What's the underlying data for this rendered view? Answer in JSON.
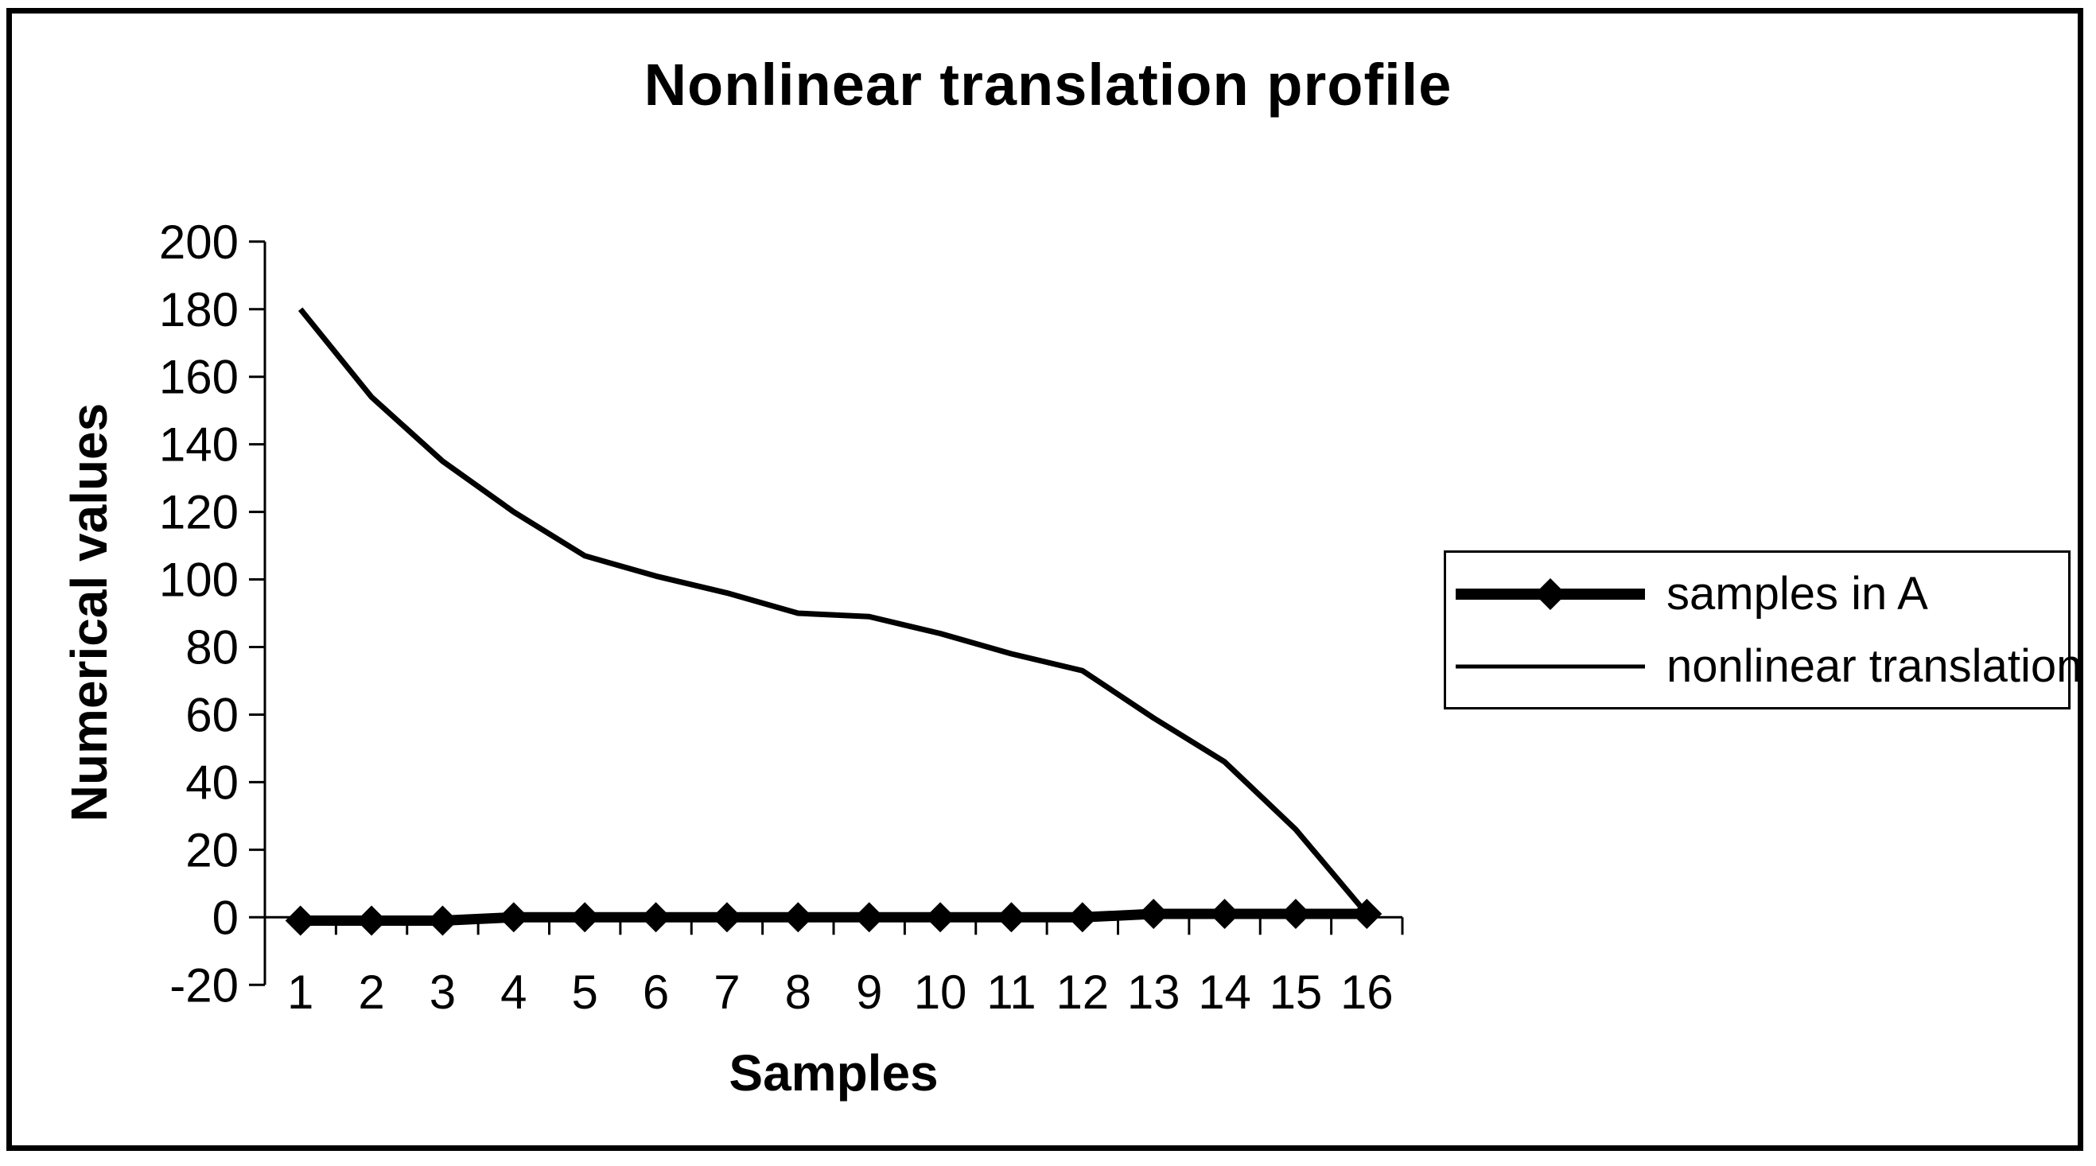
{
  "window": {
    "background": "#ffffff",
    "border_color": "#000000",
    "ink_color": "#000000"
  },
  "chart_data": {
    "type": "line",
    "title": "Nonlinear translation profile",
    "xlabel": "Samples",
    "ylabel": "Numerical values",
    "categories": [
      "1",
      "2",
      "3",
      "4",
      "5",
      "6",
      "7",
      "8",
      "9",
      "10",
      "11",
      "12",
      "13",
      "14",
      "15",
      "16"
    ],
    "y_axis": {
      "min": -20,
      "max": 200,
      "tick_step": 20
    },
    "grid": false,
    "legend_position": "middle-right",
    "series": [
      {
        "name": "samples in A",
        "marker": "diamond",
        "line_style": "thick",
        "color": "#000000",
        "values": [
          -1,
          -1,
          -1,
          0,
          0,
          0,
          0,
          0,
          0,
          0,
          0,
          0,
          1,
          1,
          1,
          1
        ]
      },
      {
        "name": "nonlinear translation",
        "marker": "none",
        "line_style": "thin",
        "color": "#000000",
        "values": [
          180,
          154,
          135,
          120,
          107,
          101,
          96,
          90,
          89,
          84,
          78,
          73,
          59,
          46,
          26,
          1
        ]
      }
    ]
  }
}
